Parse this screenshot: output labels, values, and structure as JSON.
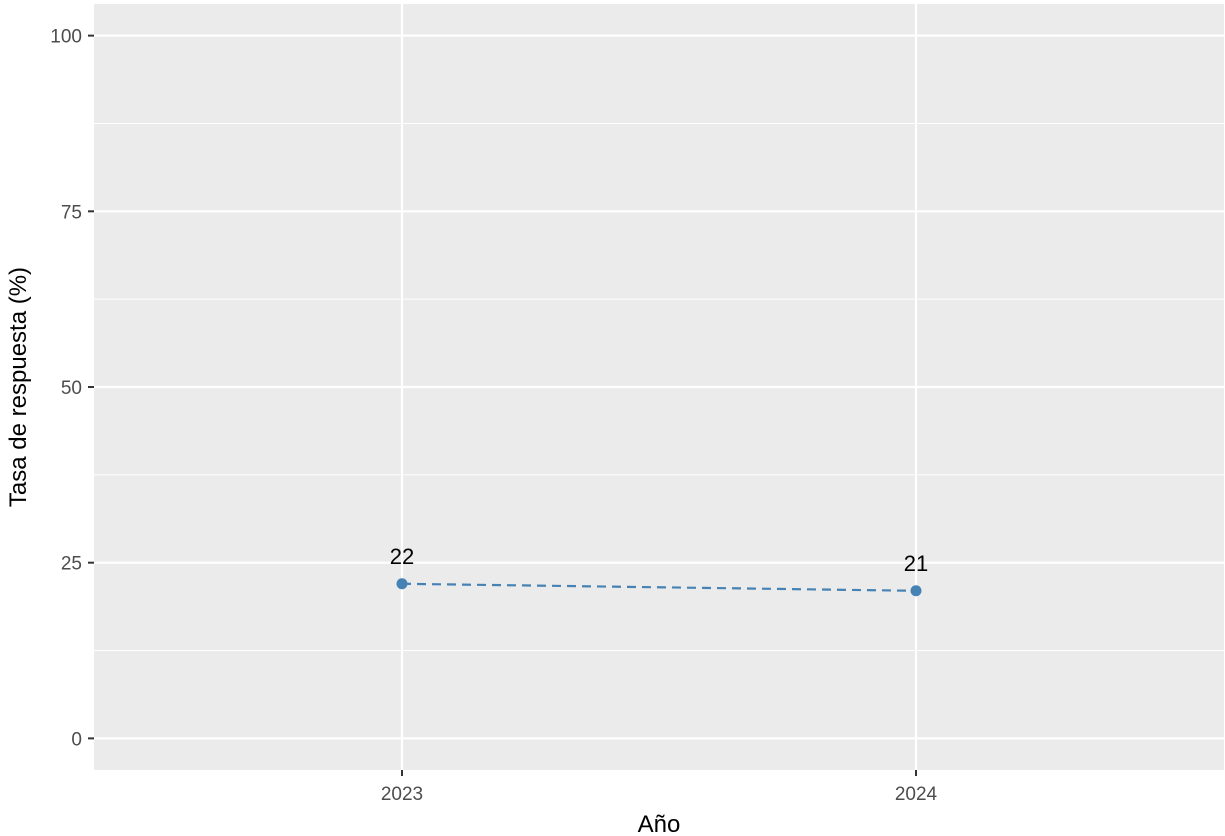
{
  "chart_data": {
    "type": "line",
    "title": "",
    "xlabel": "Año",
    "ylabel": "Tasa de respuesta (%)",
    "categories": [
      "2023",
      "2024"
    ],
    "series": [
      {
        "values": [
          22,
          21
        ],
        "labels": [
          "22",
          "21"
        ]
      }
    ],
    "ylim": [
      -4.5,
      104.5
    ],
    "y_ticks": [
      "0",
      "25",
      "50",
      "75",
      "100"
    ],
    "y_tick_values": [
      0,
      25,
      50,
      75,
      100
    ],
    "y_minor_values": [
      12.5,
      37.5,
      62.5,
      87.5
    ],
    "grid": true,
    "legend": "none",
    "line_style": "dashed",
    "colors": {
      "series": "#4682b4",
      "panel": "#ebebeb",
      "grid": "#ffffff",
      "tick_text": "#4d4d4d",
      "tick_mark": "#333333"
    }
  }
}
